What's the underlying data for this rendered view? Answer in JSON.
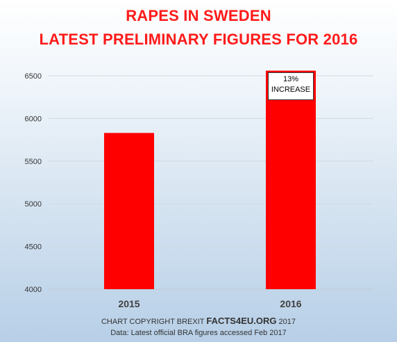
{
  "chart_data": {
    "type": "bar",
    "title": "RAPES IN SWEDEN",
    "subtitle": "LATEST PRELIMINARY FIGURES FOR 2016",
    "categories": [
      "2015",
      "2016"
    ],
    "values": [
      5830,
      6560
    ],
    "ylim": [
      4000,
      6500
    ],
    "yticks": [
      4000,
      4500,
      5000,
      5500,
      6000,
      6500
    ],
    "grid": true,
    "bar_color": "#ff0000",
    "annotation": {
      "category": "2016",
      "line1": "13%",
      "line2": "INCREASE"
    }
  },
  "footer": {
    "copyright_prefix": "CHART COPYRIGHT BREXIT",
    "brand": "FACTS4EU.ORG",
    "copyright_year": "2017",
    "source": "Data: Latest official BRA figures accessed Feb 2017"
  },
  "colors": {
    "title": "#ff1a1a",
    "bar": "#ff0000",
    "grid": "#d0d8e0"
  }
}
